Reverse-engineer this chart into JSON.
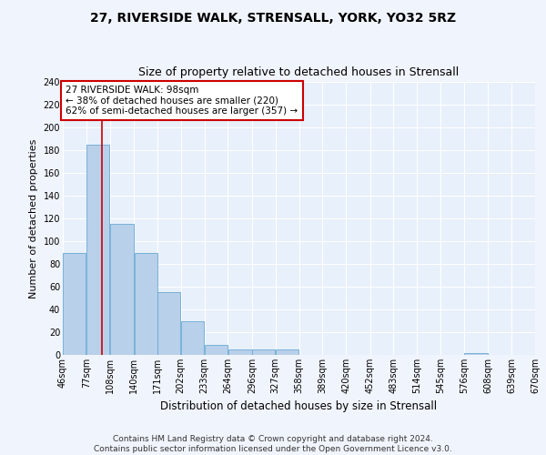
{
  "title1": "27, RIVERSIDE WALK, STRENSALL, YORK, YO32 5RZ",
  "title2": "Size of property relative to detached houses in Strensall",
  "xlabel": "Distribution of detached houses by size in Strensall",
  "ylabel": "Number of detached properties",
  "bin_edges": [
    46,
    77,
    108,
    140,
    171,
    202,
    233,
    264,
    296,
    327,
    358,
    389,
    420,
    452,
    483,
    514,
    545,
    576,
    608,
    639,
    670
  ],
  "bin_labels": [
    "46sqm",
    "77sqm",
    "108sqm",
    "140sqm",
    "171sqm",
    "202sqm",
    "233sqm",
    "264sqm",
    "296sqm",
    "327sqm",
    "358sqm",
    "389sqm",
    "420sqm",
    "452sqm",
    "483sqm",
    "514sqm",
    "545sqm",
    "576sqm",
    "608sqm",
    "639sqm",
    "670sqm"
  ],
  "counts": [
    90,
    185,
    115,
    90,
    55,
    30,
    9,
    5,
    5,
    5,
    0,
    0,
    0,
    0,
    0,
    0,
    0,
    2,
    0,
    0
  ],
  "bar_color": "#b8d0ea",
  "bar_edge_color": "#6aaad4",
  "bg_color": "#e8f0fb",
  "grid_color": "#ffffff",
  "property_line_x": 98,
  "annotation_text": "27 RIVERSIDE WALK: 98sqm\n← 38% of detached houses are smaller (220)\n62% of semi-detached houses are larger (357) →",
  "annotation_box_color": "#ffffff",
  "annotation_box_edge_color": "#cc0000",
  "ylim": [
    0,
    240
  ],
  "yticks": [
    0,
    20,
    40,
    60,
    80,
    100,
    120,
    140,
    160,
    180,
    200,
    220,
    240
  ],
  "footer_text": "Contains HM Land Registry data © Crown copyright and database right 2024.\nContains public sector information licensed under the Open Government Licence v3.0.",
  "title1_fontsize": 10,
  "title2_fontsize": 9,
  "xlabel_fontsize": 8.5,
  "ylabel_fontsize": 8,
  "tick_fontsize": 7,
  "annotation_fontsize": 7.5,
  "footer_fontsize": 6.5,
  "fig_width": 6.0,
  "fig_height": 5.0,
  "fig_dpi": 100
}
